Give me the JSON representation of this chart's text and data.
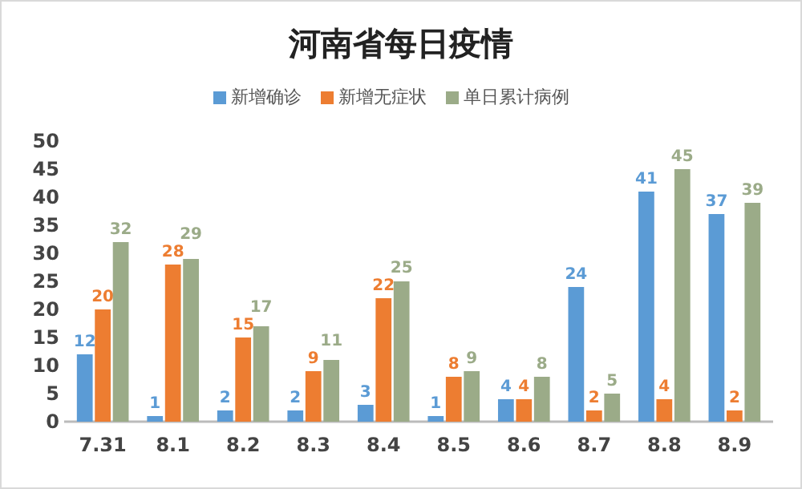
{
  "chart_data": {
    "type": "bar",
    "title": "河南省每日疫情",
    "categories": [
      "7.31",
      "8.1",
      "8.2",
      "8.3",
      "8.4",
      "8.5",
      "8.6",
      "8.7",
      "8.8",
      "8.9"
    ],
    "series": [
      {
        "name": "新增确诊",
        "color": "#5b9bd5",
        "values": [
          12,
          1,
          2,
          2,
          3,
          1,
          4,
          24,
          41,
          37
        ]
      },
      {
        "name": "新增无症状",
        "color": "#ed7d31",
        "values": [
          20,
          28,
          15,
          9,
          22,
          8,
          4,
          2,
          4,
          2
        ]
      },
      {
        "name": "单日累计病例",
        "color": "#9bab88",
        "values": [
          32,
          29,
          17,
          11,
          25,
          9,
          8,
          5,
          45,
          39
        ]
      }
    ],
    "ylim": [
      0,
      50
    ],
    "yticks": [
      0,
      5,
      10,
      15,
      20,
      25,
      30,
      35,
      40,
      45,
      50
    ],
    "data_labels": true,
    "legend": "top",
    "grid": false
  }
}
